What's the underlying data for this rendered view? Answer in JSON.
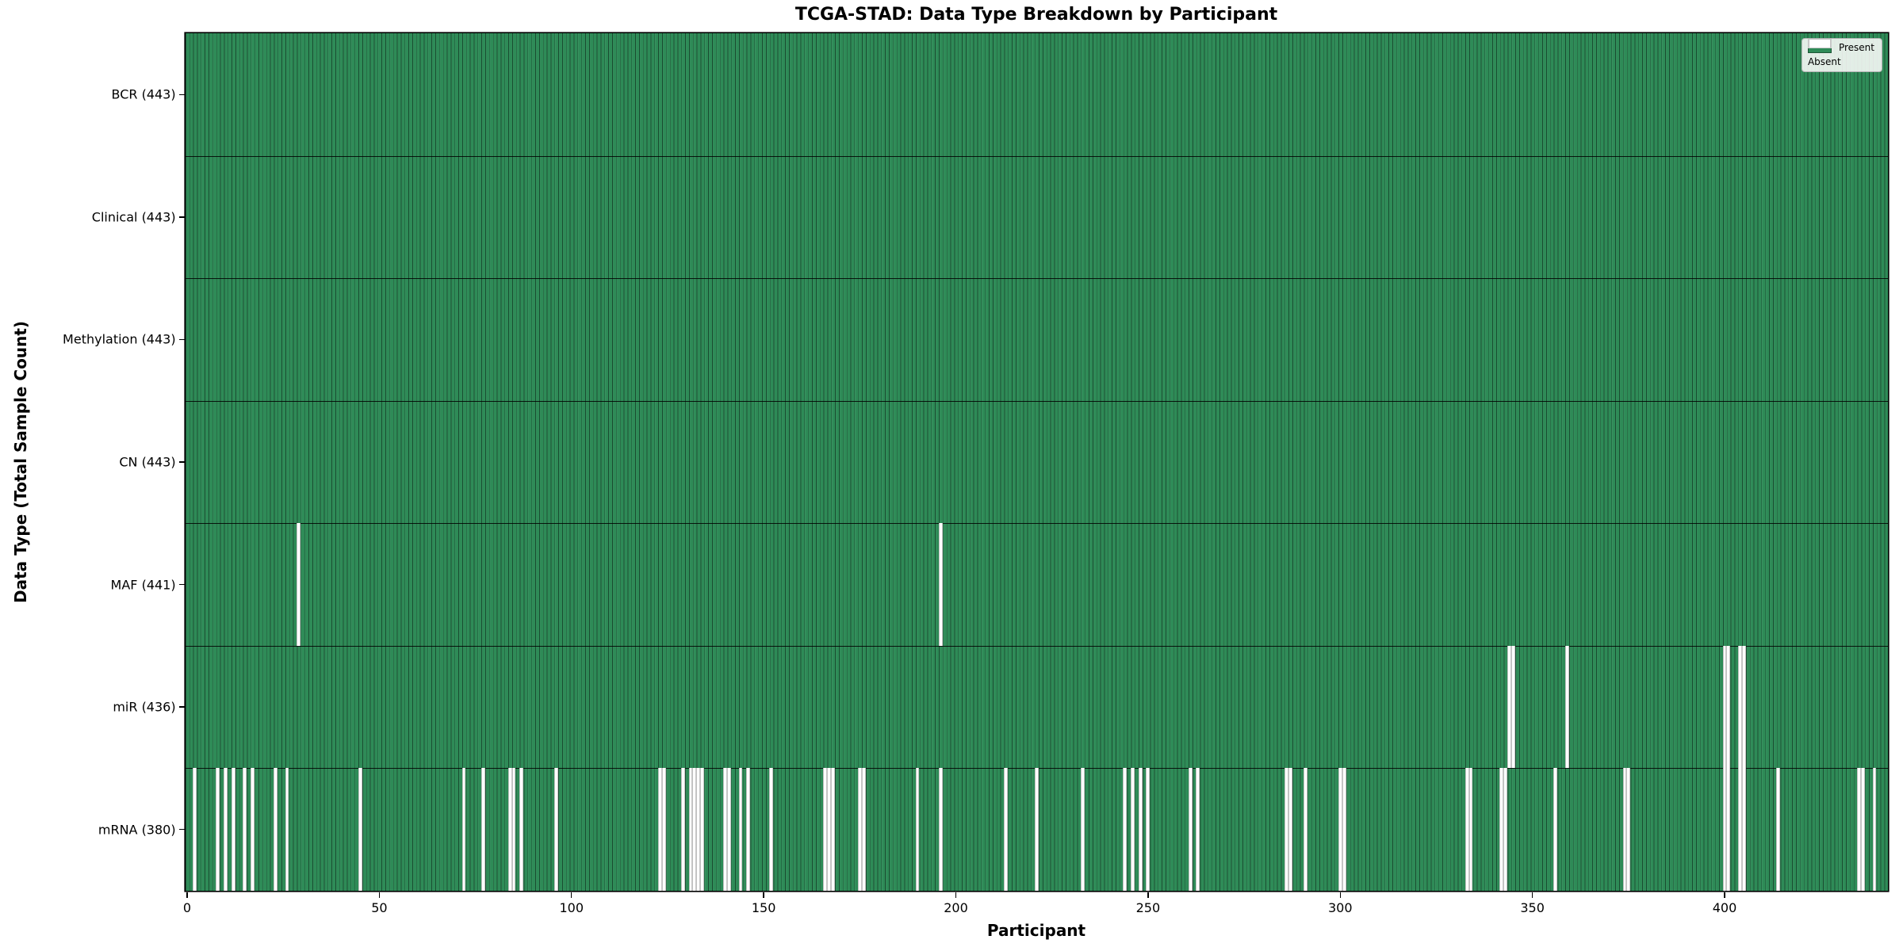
{
  "title": "TCGA-STAD: Data Type Breakdown by Participant",
  "xlabel": "Participant",
  "ylabel": "Data Type (Total Sample Count)",
  "legend": {
    "present_label": "Present",
    "absent_label": "Absent"
  },
  "colors": {
    "present": "#2e8b57",
    "bar_edge": "#1d5737",
    "absent": "#ffffff"
  },
  "x_ticks": [
    0,
    50,
    100,
    150,
    200,
    250,
    300,
    350,
    400
  ],
  "chart_data": {
    "type": "heatmap",
    "title": "TCGA-STAD: Data Type Breakdown by Participant",
    "xlabel": "Participant",
    "ylabel": "Data Type (Total Sample Count)",
    "x_range": [
      0,
      443
    ],
    "n_participants": 443,
    "legend_entries": [
      "Present",
      "Absent"
    ],
    "legend_position": "upper right",
    "grid": false,
    "rows": [
      {
        "label": "BCR (443)",
        "data_type": "BCR",
        "total": 443,
        "absent": []
      },
      {
        "label": "Clinical (443)",
        "data_type": "Clinical",
        "total": 443,
        "absent": []
      },
      {
        "label": "Methylation (443)",
        "data_type": "Methylation",
        "total": 443,
        "absent": []
      },
      {
        "label": "CN (443)",
        "data_type": "CN",
        "total": 443,
        "absent": []
      },
      {
        "label": "MAF (441)",
        "data_type": "MAF",
        "total": 441,
        "absent": [
          29,
          196
        ]
      },
      {
        "label": "miR (436)",
        "data_type": "miR",
        "total": 436,
        "absent": [
          344,
          345,
          359,
          400,
          401,
          404,
          405
        ]
      },
      {
        "label": "mRNA (380)",
        "data_type": "mRNA",
        "total": 380,
        "absent": [
          2,
          8,
          10,
          12,
          15,
          17,
          23,
          26,
          45,
          72,
          77,
          84,
          85,
          87,
          96,
          123,
          124,
          129,
          131,
          132,
          133,
          134,
          140,
          141,
          144,
          146,
          152,
          166,
          167,
          168,
          175,
          176,
          190,
          196,
          213,
          221,
          233,
          244,
          246,
          248,
          250,
          261,
          263,
          286,
          287,
          291,
          300,
          301,
          333,
          334,
          342,
          343,
          356,
          374,
          375,
          400,
          401,
          404,
          405,
          414,
          435,
          436,
          439
        ]
      }
    ]
  }
}
